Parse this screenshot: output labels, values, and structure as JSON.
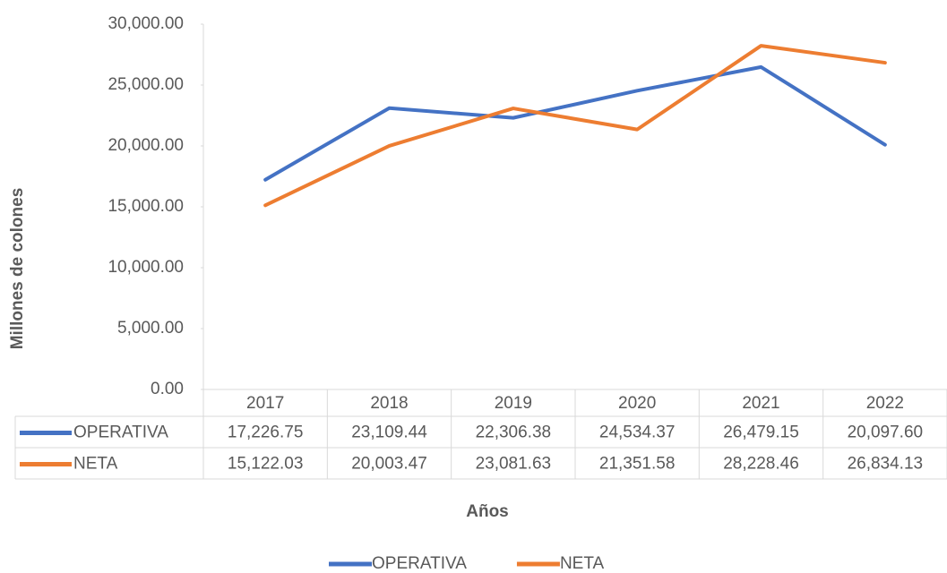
{
  "chart_data": {
    "type": "line",
    "categories": [
      "2017",
      "2018",
      "2019",
      "2020",
      "2021",
      "2022"
    ],
    "series": [
      {
        "name": "OPERATIVA",
        "color": "#4472c4",
        "values": [
          17226.75,
          23109.44,
          22306.38,
          24534.37,
          26479.15,
          20097.6
        ],
        "value_labels": [
          "17,226.75",
          "23,109.44",
          "22,306.38",
          "24,534.37",
          "26,479.15",
          "20,097.60"
        ]
      },
      {
        "name": "NETA",
        "color": "#ed7d31",
        "values": [
          15122.03,
          20003.47,
          23081.63,
          21351.58,
          28228.46,
          26834.13
        ],
        "value_labels": [
          "15,122.03",
          "20,003.47",
          "23,081.63",
          "21,351.58",
          "28,228.46",
          "26,834.13"
        ]
      }
    ],
    "ylim": [
      0,
      30000
    ],
    "yticks": [
      {
        "value": 0,
        "label": "0.00"
      },
      {
        "value": 5000,
        "label": "5,000.00"
      },
      {
        "value": 10000,
        "label": "10,000.00"
      },
      {
        "value": 15000,
        "label": "15,000.00"
      },
      {
        "value": 20000,
        "label": "20,000.00"
      },
      {
        "value": 25000,
        "label": "25,000.00"
      },
      {
        "value": 30000,
        "label": "30,000.00"
      }
    ],
    "y_label": "Millones de colones",
    "x_label": "Años",
    "legend": "bottom"
  }
}
